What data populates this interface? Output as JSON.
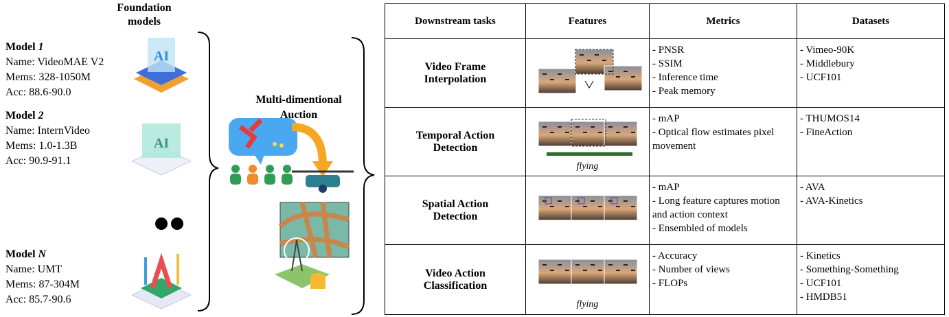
{
  "left": {
    "title": "Foundation models",
    "models": [
      {
        "label": "Model",
        "index": "1",
        "lines": [
          "Name: VideoMAE V2",
          "Mems: 328-1050M",
          "Acc: 88.6-90.0"
        ]
      },
      {
        "label": "Model",
        "index": "2",
        "lines": [
          "Name: InternVideo",
          "Mems: 1.0-1.3B",
          "Acc: 90.9-91.1"
        ]
      },
      {
        "label": "Model",
        "index": "N",
        "lines": [
          "Name: UMT",
          "Mems: 87-304M",
          "Acc: 85.7-90.6"
        ]
      }
    ]
  },
  "center": {
    "title": "Multi-dimentional Auction"
  },
  "table": {
    "headers": [
      "Downstream tasks",
      "Features",
      "Metrics",
      "Datasets"
    ],
    "rows": [
      {
        "task": "Video Frame Interpolation",
        "metrics": [
          "- PNSR",
          "- SSIM",
          "- Inference time",
          "- Peak memory"
        ],
        "datasets": [
          "- Vimeo-90K",
          "- Middlebury",
          "- UCF101"
        ]
      },
      {
        "task": "Temporal Action Detection",
        "caption": "flying",
        "metrics": [
          "- mAP",
          "- Optical flow estimates pixel movement"
        ],
        "datasets": [
          "- THUMOS14",
          "- FineAction"
        ]
      },
      {
        "task": "Spatial Action Detection",
        "metrics": [
          "- mAP",
          "- Long feature captures motion and action context",
          "- Ensembled of models"
        ],
        "datasets": [
          "- AVA",
          "- AVA-Kinetics"
        ]
      },
      {
        "task": "Video Action Classification",
        "caption": "flying",
        "metrics": [
          "- Accuracy",
          "- Number of views",
          "- FLOPs"
        ],
        "datasets": [
          "- Kinetics",
          "- Something-Something",
          "- UCF101",
          "- HMDB51"
        ]
      }
    ]
  }
}
